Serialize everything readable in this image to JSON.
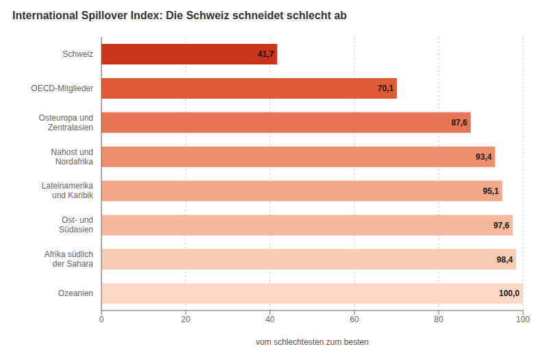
{
  "chart_data": {
    "type": "bar",
    "orientation": "horizontal",
    "title": "International Spillover Index: Die Schweiz schneidet schlecht ab",
    "xlabel": "vom schlechtesten zum besten",
    "categories": [
      "Schweiz",
      "OECD-Mitglieder",
      "Osteuropa und\nZentralasien",
      "Nahost und\nNordafrika",
      "Lateinamerika\nund Karibik",
      "Ost- und\nSüdasien",
      "Afrika südlich\nder Sahara",
      "Ozeanien"
    ],
    "values": [
      41.7,
      70.1,
      87.6,
      93.4,
      95.1,
      97.6,
      98.4,
      100.0
    ],
    "value_labels": [
      "41,7",
      "70,1",
      "87,6",
      "93,4",
      "95,1",
      "97,6",
      "98,4",
      "100,0"
    ],
    "data_labels": true,
    "colors": [
      "#C8341C",
      "#E05A35",
      "#E87555",
      "#ED9070",
      "#F2A888",
      "#F5BA9E",
      "#F7CCB5",
      "#FAD8C5"
    ],
    "xlim": [
      0,
      100
    ],
    "xticks": [
      0,
      20,
      40,
      60,
      80,
      100
    ],
    "grid": true
  }
}
